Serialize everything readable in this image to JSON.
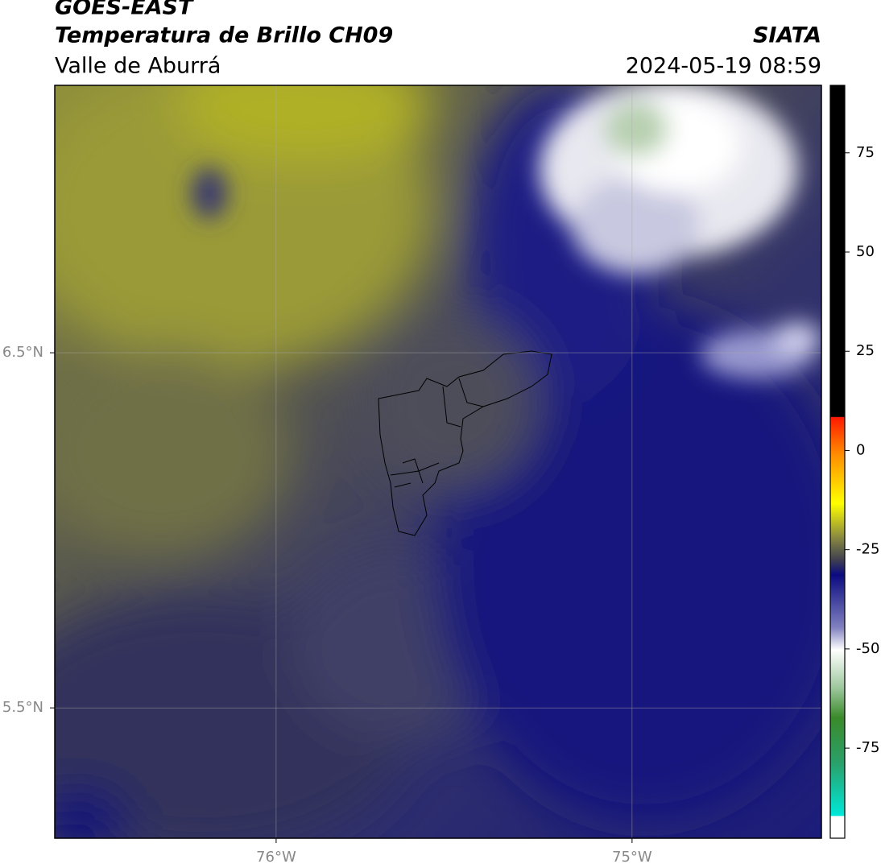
{
  "header": {
    "title": "GOES-EAST",
    "subtitle": "Temperatura de Brillo CH09",
    "region": "Valle de Aburrá",
    "source": "SIATA",
    "datetime": "2024-05-19 08:59"
  },
  "map": {
    "lonlim": [
      -76.622,
      -74.468
    ],
    "latlim": [
      5.133,
      7.253
    ],
    "lonticks": [
      {
        "value": -76,
        "label": "76°W"
      },
      {
        "value": -75,
        "label": "75°W"
      }
    ],
    "latticks": [
      {
        "value": 6.5,
        "label": "6.5°N"
      },
      {
        "value": 5.5,
        "label": "5.5°N"
      }
    ]
  },
  "colorbar": {
    "lim": [
      -97.7,
      92
    ],
    "ticks": [
      75,
      50,
      25,
      0,
      -25,
      -50,
      -75
    ]
  }
}
